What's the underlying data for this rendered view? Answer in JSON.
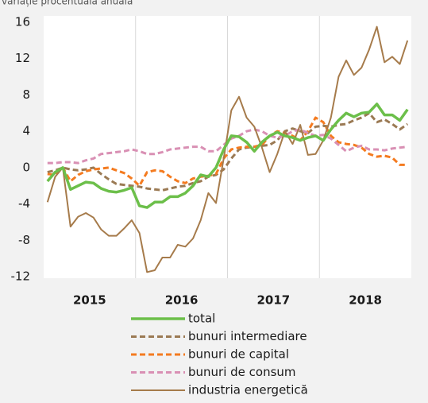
{
  "chart_data": {
    "type": "line",
    "subtitle": "variație procentuală anuală",
    "categories": [
      null,
      null,
      null,
      null,
      null,
      null,
      null,
      null,
      null,
      null,
      null,
      null,
      null,
      null,
      null,
      null,
      null,
      null,
      null,
      null,
      null,
      null,
      null,
      null,
      null,
      null,
      null,
      null,
      null,
      null,
      null,
      null,
      null,
      null,
      null,
      null,
      null,
      null,
      null,
      null,
      null,
      null,
      null,
      null,
      null,
      null,
      null,
      null
    ],
    "xtick_labels": [
      "2015",
      "2016",
      "2017",
      "2018"
    ],
    "ylim": [
      -12,
      16
    ],
    "yticks": [
      -12,
      -8,
      -4,
      0,
      4,
      8,
      12,
      16
    ],
    "series": [
      {
        "name": "total",
        "color": "#6cbf4a",
        "values": [
          -1.5,
          -0.5,
          0,
          -2.4,
          -2,
          -1.6,
          -1.7,
          -2.3,
          -2.6,
          -2.7,
          -2.5,
          -2.2,
          -4.2,
          -4.4,
          -3.8,
          -3.8,
          -3.2,
          -3.2,
          -2.8,
          -2,
          -0.8,
          -1,
          0,
          2,
          3.5,
          3.4,
          2.8,
          1.8,
          2.8,
          3.5,
          3.9,
          3.5,
          3.3,
          3,
          3.3,
          3.5,
          3,
          4.2,
          5.2,
          6,
          5.6,
          6,
          6.1,
          7,
          5.8,
          5.8,
          5.2,
          6.4
        ]
      },
      {
        "name": "bunuri intermediare",
        "color": "#9b7a54",
        "values": [
          -0.5,
          -0.3,
          0,
          -0.2,
          -0.3,
          -0.2,
          0,
          -0.7,
          -1.3,
          -1.8,
          -1.9,
          -2,
          -2.1,
          -2.3,
          -2.4,
          -2.5,
          -2.3,
          -2.1,
          -2,
          -1.7,
          -1.5,
          -1,
          -0.8,
          -0.2,
          1,
          2,
          2.2,
          2.3,
          2.4,
          2.5,
          3,
          4,
          4.3,
          4,
          3.8,
          4.5,
          4.6,
          4.5,
          4.7,
          4.8,
          5.2,
          5.5,
          6,
          5,
          5.3,
          4.8,
          4.2,
          4.8
        ]
      },
      {
        "name": "bunuri de capital",
        "color": "#f47b20",
        "values": [
          -0.7,
          -0.8,
          0,
          -1.5,
          -0.8,
          -0.4,
          -0.2,
          -0.1,
          0,
          -0.3,
          -0.6,
          -1.2,
          -2,
          -0.5,
          -0.3,
          -0.4,
          -1,
          -1.5,
          -1.7,
          -1.2,
          -1,
          -0.9,
          -0.7,
          1,
          2,
          2.2,
          2.3,
          2.3,
          2.5,
          3.5,
          4,
          3.8,
          3.5,
          3,
          4,
          5.5,
          5,
          3.5,
          2.8,
          2.6,
          2.5,
          2.2,
          1.5,
          1.2,
          1.3,
          1.1,
          0.3,
          0.3
        ]
      },
      {
        "name": "bunuri de consum",
        "color": "#d990b4",
        "values": [
          0.5,
          0.5,
          0.6,
          0.6,
          0.5,
          0.8,
          1,
          1.5,
          1.6,
          1.7,
          1.8,
          2,
          1.8,
          1.5,
          1.5,
          1.7,
          2,
          2.1,
          2.2,
          2.3,
          2.3,
          1.8,
          1.8,
          2.5,
          3.2,
          3.5,
          4,
          4.2,
          4,
          3.5,
          3.3,
          3.5,
          4,
          4.2,
          3.8,
          3.5,
          3.6,
          3.2,
          2.5,
          1.8,
          2.2,
          2.4,
          2,
          2,
          1.9,
          2.1,
          2.2,
          2.3
        ]
      },
      {
        "name": "industria energetică",
        "color": "#a67b4b",
        "values": [
          -3.8,
          -1,
          0,
          -6.5,
          -5.4,
          -5,
          -5.5,
          -6.8,
          -7.5,
          -7.5,
          -6.7,
          -5.8,
          -7.2,
          -11.5,
          -11.3,
          -9.9,
          -9.9,
          -8.5,
          -8.7,
          -7.8,
          -5.8,
          -2.8,
          -3.9,
          1,
          6.3,
          7.8,
          5.5,
          4.5,
          2.2,
          -0.5,
          1.5,
          4,
          2.6,
          4.7,
          1.4,
          1.5,
          3,
          5.5,
          10,
          11.8,
          10.2,
          11,
          13,
          15.5,
          11.6,
          12.2,
          11.4,
          14
        ]
      }
    ]
  }
}
